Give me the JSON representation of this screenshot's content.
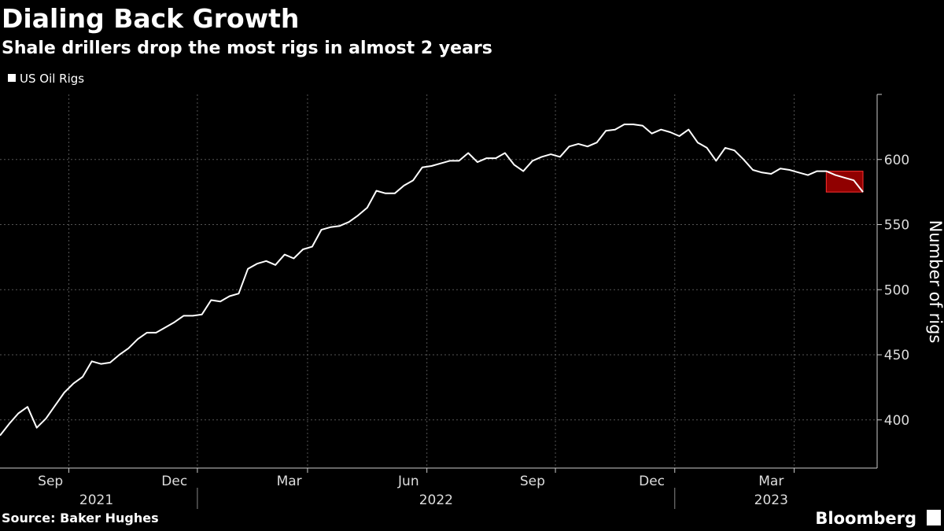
{
  "chart_data": {
    "type": "line",
    "title": "Dialing Back Growth",
    "subtitle": "Shale drillers drop the most rigs in almost 2 years",
    "y_label": "Number of rigs",
    "source": "Source: Baker Hughes",
    "brand": "Bloomberg",
    "x": [
      "2021-08",
      "2021-08",
      "2021-08",
      "2021-08",
      "2021-09",
      "2021-09",
      "2021-09",
      "2021-09",
      "2021-10",
      "2021-10",
      "2021-10",
      "2021-10",
      "2021-10",
      "2021-11",
      "2021-11",
      "2021-11",
      "2021-11",
      "2021-12",
      "2021-12",
      "2021-12",
      "2021-12",
      "2021-12",
      "2022-01",
      "2022-01",
      "2022-01",
      "2022-01",
      "2022-02",
      "2022-02",
      "2022-02",
      "2022-02",
      "2022-03",
      "2022-03",
      "2022-03",
      "2022-03",
      "2022-04",
      "2022-04",
      "2022-04",
      "2022-04",
      "2022-04",
      "2022-05",
      "2022-05",
      "2022-05",
      "2022-05",
      "2022-06",
      "2022-06",
      "2022-06",
      "2022-06",
      "2022-07",
      "2022-07",
      "2022-07",
      "2022-07",
      "2022-07",
      "2022-08",
      "2022-08",
      "2022-08",
      "2022-08",
      "2022-09",
      "2022-09",
      "2022-09",
      "2022-09",
      "2022-09",
      "2022-10",
      "2022-10",
      "2022-10",
      "2022-10",
      "2022-11",
      "2022-11",
      "2022-11",
      "2022-11",
      "2022-12",
      "2022-12",
      "2022-12",
      "2022-12",
      "2022-12",
      "2023-01",
      "2023-01",
      "2023-01",
      "2023-01",
      "2023-02",
      "2023-02",
      "2023-02",
      "2023-02",
      "2023-03",
      "2023-03",
      "2023-03",
      "2023-03",
      "2023-03",
      "2023-04",
      "2023-04",
      "2023-04",
      "2023-04",
      "2023-05",
      "2023-05",
      "2023-05",
      "2023-05"
    ],
    "x_tick_labels": [
      "Sep",
      "Dec",
      "Mar",
      "Jun",
      "Sep",
      "Dec",
      "Mar"
    ],
    "x_year_labels": [
      "2021",
      "2022",
      "2023"
    ],
    "series": [
      {
        "name": "US Oil Rigs",
        "color": "#ffffff",
        "values": [
          388,
          397,
          405,
          410,
          394,
          401,
          411,
          421,
          428,
          433,
          445,
          443,
          444,
          450,
          455,
          462,
          467,
          467,
          471,
          475,
          480,
          480,
          481,
          492,
          491,
          495,
          497,
          516,
          520,
          522,
          519,
          527,
          524,
          531,
          533,
          546,
          548,
          549,
          552,
          557,
          563,
          576,
          574,
          574,
          580,
          584,
          594,
          595,
          597,
          599,
          599,
          605,
          598,
          601,
          601,
          605,
          596,
          591,
          599,
          602,
          604,
          602,
          610,
          612,
          610,
          613,
          622,
          623,
          627,
          627,
          626,
          620,
          623,
          621,
          618,
          623,
          613,
          609,
          599,
          609,
          607,
          600,
          592,
          590,
          589,
          593,
          592,
          590,
          588,
          591,
          591,
          588,
          586,
          584,
          575
        ]
      }
    ],
    "highlight_color": "#c00000",
    "ylim": [
      363,
      650
    ],
    "yticks": [
      400,
      450,
      500,
      550,
      600
    ],
    "grid": true
  }
}
